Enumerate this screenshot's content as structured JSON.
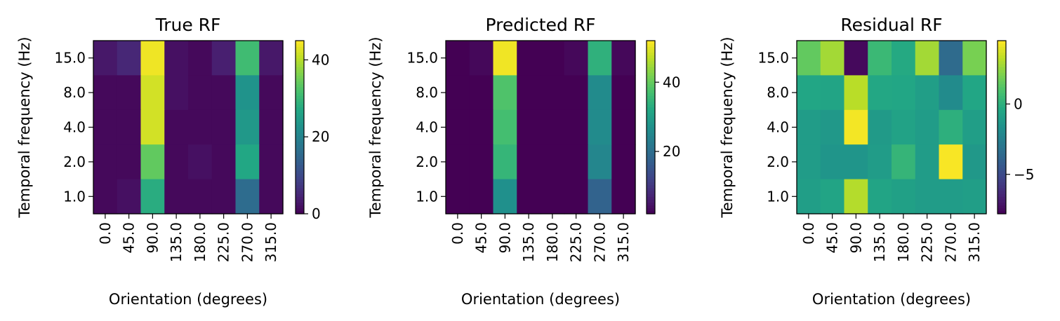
{
  "colors": {
    "colormap": "viridis",
    "axes": "#000000",
    "background": "#ffffff"
  },
  "chart_data": [
    {
      "type": "heatmap",
      "title": "True RF",
      "xlabel": "Orientation (degrees)",
      "ylabel": "Temporal frequency (Hz)",
      "x_categories": [
        "0.0",
        "45.0",
        "90.0",
        "135.0",
        "180.0",
        "225.0",
        "270.0",
        "315.0"
      ],
      "y_categories": [
        "15.0",
        "8.0",
        "4.0",
        "2.0",
        "1.0"
      ],
      "values": [
        [
          3,
          5,
          44,
          2,
          1,
          4,
          31,
          3
        ],
        [
          1,
          1,
          42,
          2,
          1,
          1,
          23,
          1
        ],
        [
          1,
          1,
          42,
          1,
          1,
          1,
          24,
          1
        ],
        [
          1,
          1,
          34,
          1,
          2,
          1,
          27,
          1
        ],
        [
          1,
          2,
          28,
          1,
          1,
          1,
          16,
          1
        ]
      ],
      "colorbar": {
        "min": 0,
        "max": 45,
        "ticks": [
          0,
          20,
          40
        ],
        "tick_labels": [
          "0",
          "20",
          "40"
        ]
      }
    },
    {
      "type": "heatmap",
      "title": "Predicted RF",
      "xlabel": "Orientation (degrees)",
      "ylabel": "Temporal frequency (Hz)",
      "x_categories": [
        "0.0",
        "45.0",
        "90.0",
        "135.0",
        "180.0",
        "225.0",
        "270.0",
        "315.0"
      ],
      "y_categories": [
        "15.0",
        "8.0",
        "4.0",
        "2.0",
        "1.0"
      ],
      "values": [
        [
          2,
          3,
          51,
          2,
          2,
          3,
          34,
          3
        ],
        [
          2,
          2,
          38,
          2,
          2,
          2,
          26,
          2
        ],
        [
          2,
          2,
          37,
          2,
          2,
          2,
          26,
          2
        ],
        [
          2,
          2,
          35,
          2,
          2,
          2,
          25,
          2
        ],
        [
          2,
          2,
          27,
          2,
          2,
          2,
          18,
          2
        ]
      ],
      "colorbar": {
        "min": 2,
        "max": 52,
        "ticks": [
          20,
          40
        ],
        "tick_labels": [
          "20",
          "40"
        ]
      }
    },
    {
      "type": "heatmap",
      "title": "Residual RF",
      "xlabel": "Orientation (degrees)",
      "ylabel": "Temporal frequency (Hz)",
      "x_categories": [
        "0.0",
        "45.0",
        "90.0",
        "135.0",
        "180.0",
        "225.0",
        "270.0",
        "315.0"
      ],
      "y_categories": [
        "15.0",
        "8.0",
        "4.0",
        "2.0",
        "1.0"
      ],
      "values": [
        [
          1.5,
          2.8,
          -7.5,
          0.5,
          -0.3,
          2.8,
          -3.5,
          2.0
        ],
        [
          -0.5,
          -0.6,
          3.2,
          -0.4,
          -0.5,
          -0.9,
          -1.9,
          -0.5
        ],
        [
          -1.0,
          -1.2,
          4.3,
          -1.1,
          -0.7,
          -1.0,
          0.0,
          -0.9
        ],
        [
          -1.0,
          -1.4,
          -1.4,
          -1.0,
          0.3,
          -1.0,
          4.4,
          -1.2
        ],
        [
          -0.9,
          -0.6,
          3.1,
          -0.6,
          -0.8,
          -1.0,
          -1.0,
          -0.9
        ]
      ],
      "colorbar": {
        "min": -7.8,
        "max": 4.5,
        "ticks": [
          -5,
          0
        ],
        "tick_labels": [
          "−5",
          "0"
        ]
      }
    }
  ]
}
